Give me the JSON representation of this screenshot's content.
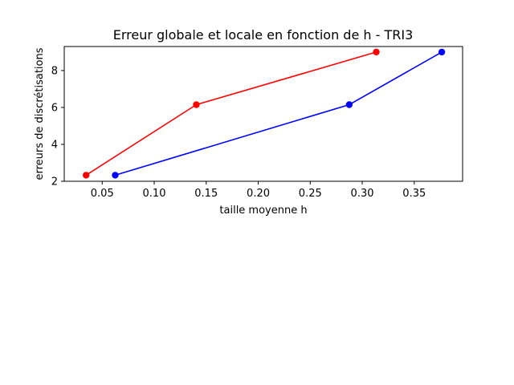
{
  "chart_data": {
    "type": "line",
    "title": "Erreur globale et locale en fonction de h - TRI3",
    "xlabel": "taille moyenne h",
    "ylabel": "erreurs de discrétisations",
    "xlim": [
      0.0135,
      0.3965
    ],
    "ylim": [
      2.0,
      9.3
    ],
    "x_ticks": [
      {
        "value": 0.05,
        "label": "0.05"
      },
      {
        "value": 0.1,
        "label": "0.10"
      },
      {
        "value": 0.15,
        "label": "0.15"
      },
      {
        "value": 0.2,
        "label": "0.20"
      },
      {
        "value": 0.25,
        "label": "0.25"
      },
      {
        "value": 0.3,
        "label": "0.30"
      },
      {
        "value": 0.35,
        "label": "0.35"
      }
    ],
    "y_ticks": [
      {
        "value": 2,
        "label": "2"
      },
      {
        "value": 4,
        "label": "4"
      },
      {
        "value": 6,
        "label": "6"
      },
      {
        "value": 8,
        "label": "8"
      }
    ],
    "grid": false,
    "series": [
      {
        "color": "#ff0000",
        "x": [
          0.0345,
          0.1405,
          0.3135
        ],
        "y": [
          2.33,
          6.15,
          9.0
        ]
      },
      {
        "color": "#0000ff",
        "x": [
          0.0625,
          0.2875,
          0.3765
        ],
        "y": [
          2.33,
          6.15,
          9.0
        ]
      }
    ]
  }
}
